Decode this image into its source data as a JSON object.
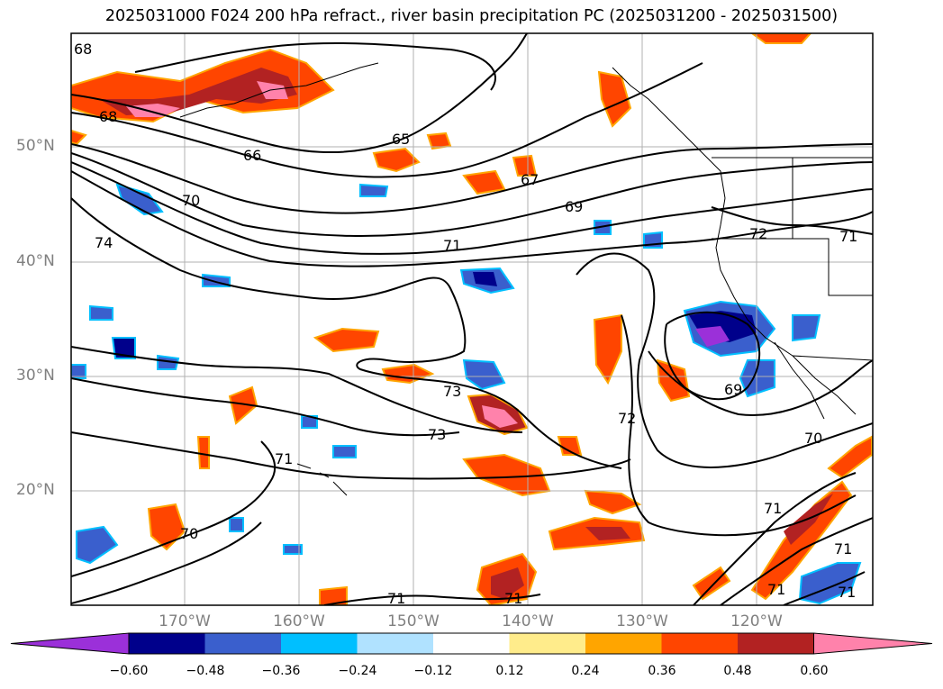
{
  "title": "2025031000 F024 200 hPa refract., river basin precipitation PC (2025031200 - 2025031500)",
  "latitude_labels": [
    "50°N",
    "40°N",
    "30°N",
    "20°N"
  ],
  "longitude_labels": [
    "170°W",
    "160°W",
    "150°W",
    "140°W",
    "130°W",
    "120°W"
  ],
  "contour_labels": [
    "68",
    "68",
    "66",
    "65",
    "67",
    "69",
    "70",
    "71",
    "74",
    "72",
    "73",
    "73",
    "72",
    "69",
    "70",
    "71",
    "71",
    "70",
    "71",
    "71",
    "71",
    "71",
    "71",
    "71"
  ],
  "colorbar": {
    "tick_labels": [
      "−0.60",
      "−0.48",
      "−0.36",
      "−0.24",
      "−0.12",
      "0.12",
      "0.24",
      "0.36",
      "0.48",
      "0.60"
    ],
    "colors": [
      "#9b30d9",
      "#00008b",
      "#3a5fcd",
      "#00bfff",
      "#b0e2ff",
      "#ffffff",
      "#ffec8b",
      "#ffa500",
      "#ff4500",
      "#b22222",
      "#ff82ab"
    ]
  }
}
